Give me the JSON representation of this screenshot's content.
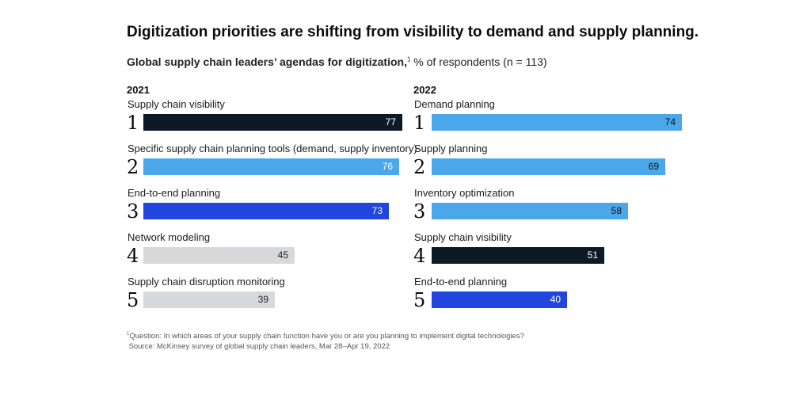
{
  "title": "Digitization priorities are shifting from visibility to demand and supply planning.",
  "subtitle_bold": "Global supply chain leaders’ agendas for digitization,",
  "subtitle_sup": "1",
  "subtitle_rest": " % of respondents (n = 113)",
  "footnote": {
    "marker": "1",
    "question": "Question: In which areas of your supply chain function have you or are you planning to implement digital technologies?",
    "source": "Source: McKinsey survey of global supply chain leaders, Mar 28–Apr 19, 2022"
  },
  "colors": {
    "navy": "#0d1a26",
    "light_blue": "#4aa8ea",
    "royal_blue": "#2146e0",
    "gray": "#d6d8db"
  },
  "chart_data": [
    {
      "type": "bar",
      "title": "2021",
      "ranks": [
        "1",
        "2",
        "3",
        "4",
        "5"
      ],
      "categories": [
        "Supply chain visibility",
        "Specific supply chain planning tools (demand, supply inventory)",
        "End-to-end planning",
        "Network modeling",
        "Supply chain disruption monitoring"
      ],
      "values": [
        77,
        76,
        73,
        45,
        39
      ],
      "bar_colors": [
        "navy",
        "light_blue",
        "royal_blue",
        "gray",
        "gray"
      ],
      "label_colors": [
        "#ffffff",
        "#ffffff",
        "#ffffff",
        "#222222",
        "#222222"
      ]
    },
    {
      "type": "bar",
      "title": "2022",
      "ranks": [
        "1",
        "2",
        "3",
        "4",
        "5"
      ],
      "categories": [
        "Demand planning",
        "Supply planning",
        "Inventory optimization",
        "Supply chain visibility",
        "End-to-end planning"
      ],
      "values": [
        74,
        69,
        58,
        51,
        40
      ],
      "bar_colors": [
        "light_blue",
        "light_blue",
        "light_blue",
        "navy",
        "royal_blue"
      ],
      "label_colors": [
        "#111111",
        "#111111",
        "#111111",
        "#ffffff",
        "#ffffff"
      ]
    }
  ]
}
